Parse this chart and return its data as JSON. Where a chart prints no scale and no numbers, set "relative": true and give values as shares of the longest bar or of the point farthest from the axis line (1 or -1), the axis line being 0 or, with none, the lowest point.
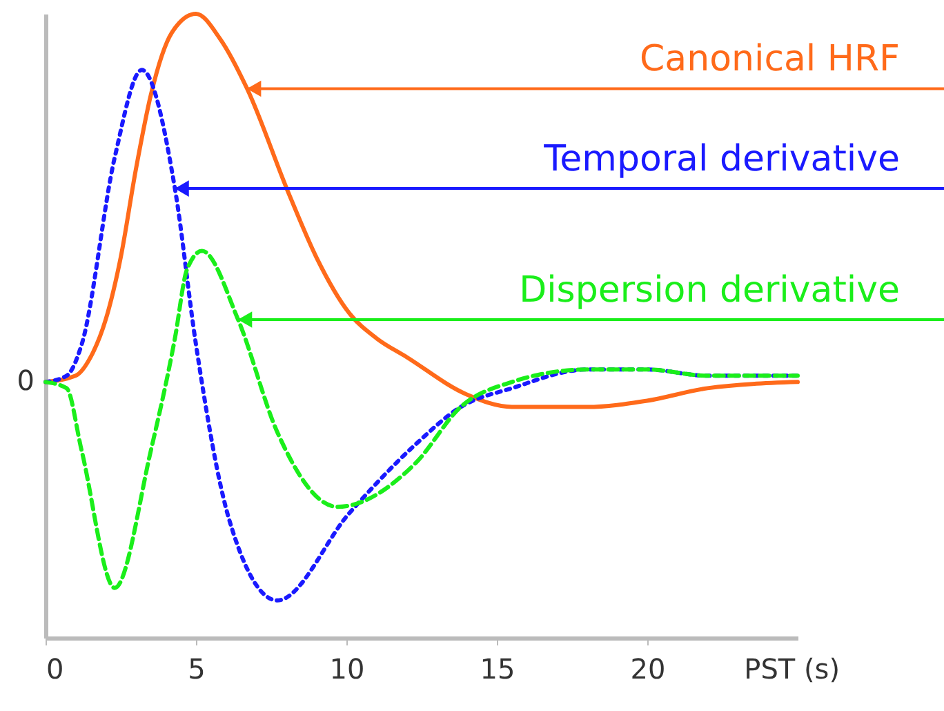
{
  "chart_data": {
    "type": "line",
    "relative": true,
    "xlabel": "PST (s)",
    "xlim": [
      0,
      25
    ],
    "xticks": [
      0,
      5,
      10,
      15,
      20
    ],
    "grid": false,
    "series": [
      {
        "color": "#ff6a1a",
        "line_style": "solid",
        "x": [
          0,
          1,
          1.5,
          2,
          2.5,
          3,
          3.5,
          4.2,
          5,
          5.8,
          6.7,
          8.1,
          9,
          10.1,
          11,
          12,
          14,
          15.5,
          18,
          20,
          22,
          25
        ],
        "values": [
          0.41,
          0.42,
          0.45,
          0.51,
          0.61,
          0.75,
          0.87,
          0.97,
          1.0,
          0.96,
          0.88,
          0.71,
          0.61,
          0.52,
          0.48,
          0.45,
          0.39,
          0.37,
          0.37,
          0.38,
          0.4,
          0.41
        ]
      },
      {
        "color": "#1a1aff",
        "line_style": "dotted",
        "x": [
          0,
          0.7,
          1.2,
          2.3,
          3.2,
          4.3,
          5,
          6.1,
          7.7,
          10.1,
          12.3,
          13.8,
          15.5,
          18,
          20,
          22,
          25
        ],
        "values": [
          0.41,
          0.42,
          0.47,
          0.77,
          0.91,
          0.72,
          0.47,
          0.19,
          0.06,
          0.2,
          0.31,
          0.37,
          0.4,
          0.43,
          0.43,
          0.42,
          0.42
        ]
      },
      {
        "color": "#1aee1a",
        "line_style": "dashed",
        "x": [
          0,
          0.7,
          1.2,
          2.3,
          3.5,
          4.3,
          4.7,
          5.2,
          6.4,
          7.7,
          9.7,
          12.3,
          13.8,
          15.5,
          18,
          20,
          22,
          25
        ],
        "values": [
          0.41,
          0.4,
          0.3,
          0.08,
          0.3,
          0.48,
          0.59,
          0.62,
          0.51,
          0.33,
          0.21,
          0.28,
          0.37,
          0.41,
          0.43,
          0.43,
          0.42,
          0.42
        ]
      }
    ],
    "annotations": [
      {
        "text": "Canonical HRF",
        "x": 6.7,
        "y": 0.88
      },
      {
        "text": "Temporal derivative",
        "x": 4.3,
        "y": 0.72
      },
      {
        "text": "Dispersion derivative",
        "x": 6.4,
        "y": 0.51
      },
      "0"
    ]
  }
}
